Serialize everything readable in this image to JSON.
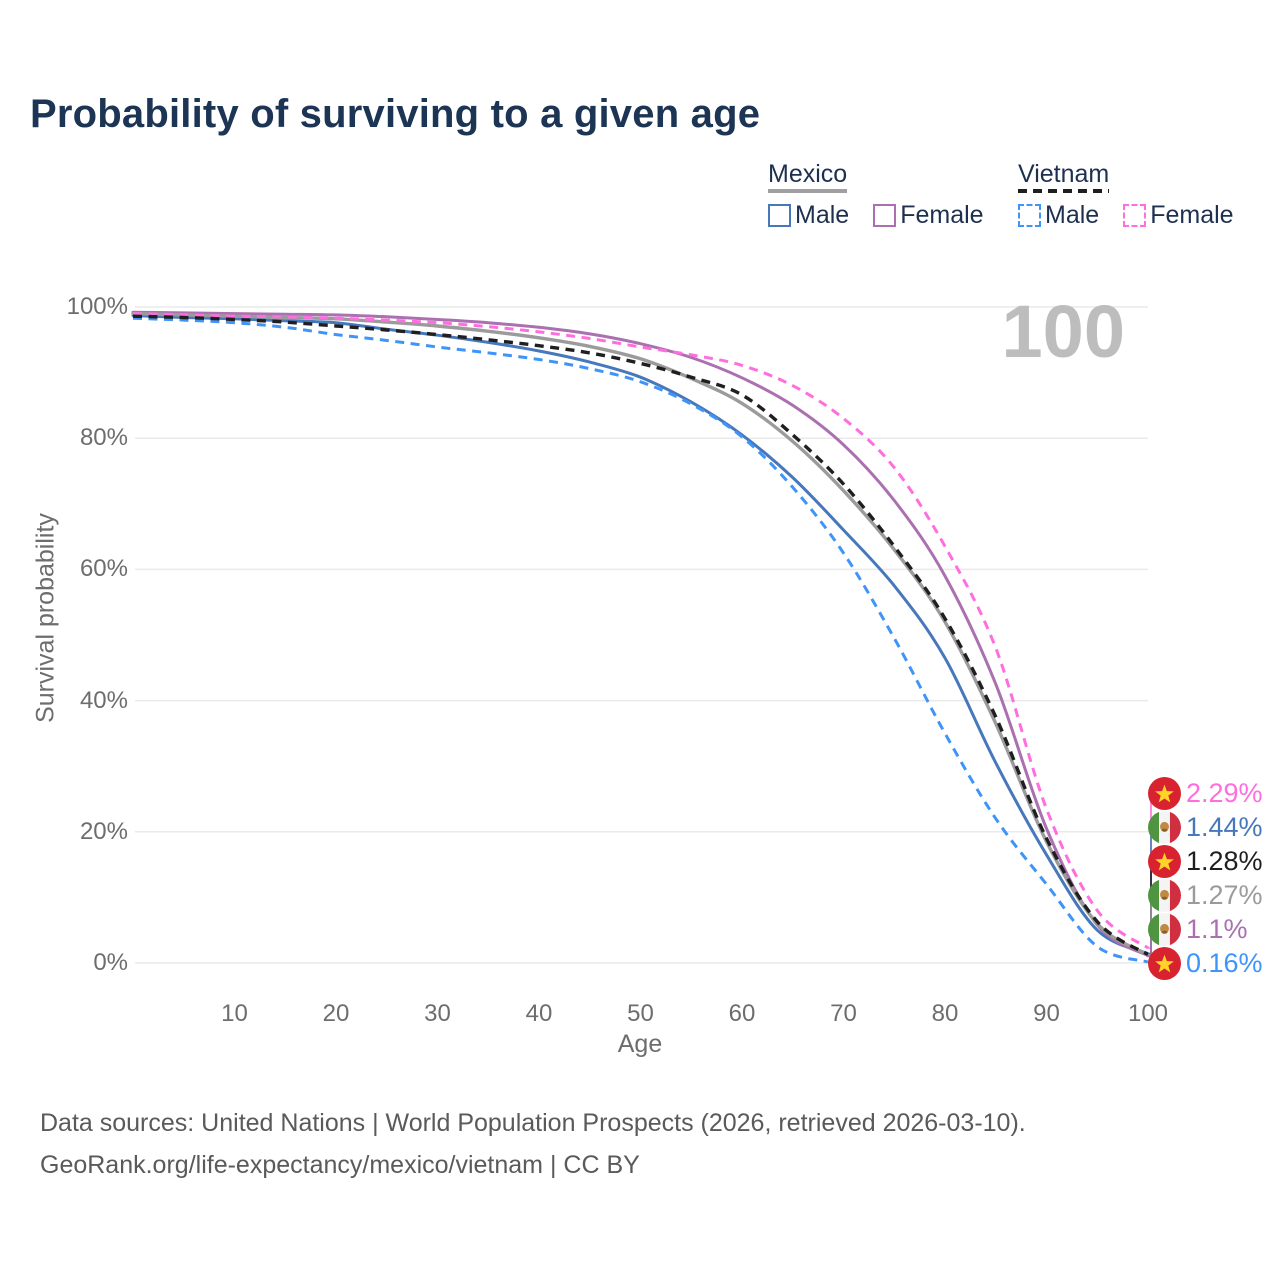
{
  "watermark_hover_age": "100",
  "legend": {
    "groups": [
      {
        "label": "Mexico",
        "style": "solid",
        "underline_color": "#a0a0a0",
        "items": [
          {
            "label": "Male",
            "color": "#4678bb"
          },
          {
            "label": "Female",
            "color": "#ab70b0"
          }
        ]
      },
      {
        "label": "Vietnam",
        "style": "dashed",
        "underline_color": "#1f1f1f",
        "items": [
          {
            "label": "Male",
            "color": "#3f94f9"
          },
          {
            "label": "Female",
            "color": "#ff6ede"
          }
        ]
      }
    ]
  },
  "chart_data": {
    "type": "line",
    "title": "Probability of surviving to a given age",
    "xlabel": "Age",
    "ylabel": "Survival probability",
    "xlim": [
      0,
      100
    ],
    "ylim": [
      0,
      100
    ],
    "grid": "horizontal",
    "legend_position": "top-right",
    "x_ticks": [
      10,
      20,
      30,
      40,
      50,
      60,
      70,
      80,
      90,
      100
    ],
    "y_ticks": [
      {
        "value": 0,
        "label": "0%"
      },
      {
        "value": 20,
        "label": "20%"
      },
      {
        "value": 40,
        "label": "40%"
      },
      {
        "value": 60,
        "label": "60%"
      },
      {
        "value": 80,
        "label": "80%"
      },
      {
        "value": 100,
        "label": "100%"
      }
    ],
    "hover_age_label": "100",
    "ages": [
      0,
      5,
      10,
      15,
      20,
      25,
      30,
      35,
      40,
      45,
      50,
      55,
      60,
      65,
      70,
      75,
      80,
      85,
      90,
      95,
      100
    ],
    "series": [
      {
        "name": "Mexico Male",
        "country": "mexico",
        "sex": "male",
        "line": "solid",
        "color": "#4678bb",
        "end_label": "1.44%",
        "values": [
          98.7,
          98.4,
          98.2,
          97.9,
          97.6,
          96.6,
          95.7,
          94.6,
          93.3,
          91.6,
          89.3,
          85.5,
          80.5,
          74.0,
          66.0,
          57.5,
          46.5,
          30.5,
          16.5,
          5.0,
          1.44
        ]
      },
      {
        "name": "Mexico Female",
        "country": "mexico",
        "sex": "female",
        "line": "solid",
        "color": "#ab70b0",
        "end_label": "1.1%",
        "values": [
          99.2,
          99.1,
          99.0,
          98.9,
          98.8,
          98.5,
          98.1,
          97.6,
          96.9,
          95.9,
          94.4,
          92.3,
          89.2,
          85.0,
          79.0,
          70.5,
          59.0,
          42.5,
          20.5,
          5.8,
          1.1
        ]
      },
      {
        "name": "Mexico (both sexes)",
        "country": "mexico",
        "sex": "both",
        "line": "solid",
        "color": "#9b9b9b",
        "end_label": "1.27%",
        "values": [
          99.0,
          98.8,
          98.6,
          98.4,
          98.2,
          97.7,
          97.1,
          96.3,
          95.3,
          94.0,
          92.1,
          89.1,
          85.3,
          79.5,
          72.0,
          63.0,
          52.0,
          36.5,
          18.5,
          6.0,
          1.27
        ]
      },
      {
        "name": "Vietnam Male",
        "country": "vietnam",
        "sex": "male",
        "line": "dashed",
        "color": "#3f94f9",
        "end_label": "0.16%",
        "values": [
          98.3,
          98.0,
          97.6,
          96.9,
          95.8,
          94.9,
          93.9,
          93.0,
          92.0,
          90.6,
          88.6,
          85.2,
          80.2,
          72.5,
          62.5,
          49.5,
          35.0,
          22.0,
          12.0,
          2.5,
          0.16
        ]
      },
      {
        "name": "Vietnam Female",
        "country": "vietnam",
        "sex": "female",
        "line": "dashed",
        "color": "#ff6ede",
        "end_label": "2.29%",
        "values": [
          99.0,
          98.8,
          98.6,
          98.5,
          98.3,
          98.0,
          97.6,
          97.0,
          96.2,
          95.2,
          93.9,
          92.7,
          91.1,
          88.0,
          83.0,
          75.5,
          63.5,
          48.0,
          23.5,
          8.0,
          2.29
        ]
      },
      {
        "name": "Vietnam (both sexes)",
        "country": "vietnam",
        "sex": "both",
        "line": "dashed",
        "color": "#1f1f1f",
        "end_label": "1.28%",
        "values": [
          98.6,
          98.4,
          98.1,
          97.7,
          97.1,
          96.5,
          95.8,
          95.0,
          94.1,
          93.0,
          91.4,
          89.3,
          86.6,
          80.5,
          73.0,
          63.5,
          52.5,
          37.5,
          19.0,
          6.3,
          1.28
        ]
      }
    ]
  },
  "footer": {
    "line1": "Data sources: United Nations | World Population Prospects (2026, retrieved 2026-03-10).",
    "line2": "GeoRank.org/life-expectancy/mexico/vietnam | CC BY"
  }
}
